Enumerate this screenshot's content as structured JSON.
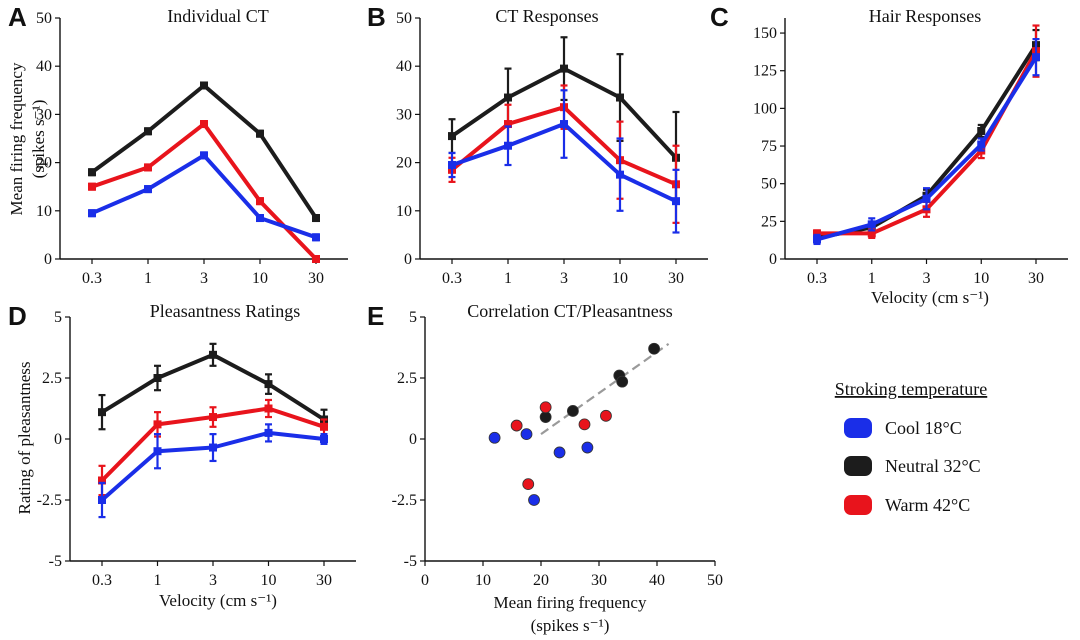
{
  "colors": {
    "Cool 18°C": "#1a2ee8",
    "Neutral 32°C": "#1c1c1c",
    "Warm 42°C": "#e8141c"
  },
  "legend": {
    "title": "Stroking temperature",
    "entries": [
      "Cool 18°C",
      "Neutral 32°C",
      "Warm 42°C"
    ]
  },
  "chart_data": [
    {
      "id": "A",
      "type": "line",
      "title": "Individual CT",
      "xlabel": "",
      "ylabel": [
        "Mean firing frequency",
        "(spikes s⁻¹)"
      ],
      "categories": [
        "0.3",
        "1",
        "3",
        "10",
        "30"
      ],
      "ylim": [
        0,
        50
      ],
      "yticks": [
        "0",
        "10",
        "20",
        "30",
        "40",
        "50"
      ],
      "series": [
        {
          "name": "Neutral 32°C",
          "values": [
            18,
            26.5,
            36,
            26,
            8.5
          ],
          "err": [
            0.6,
            0.6,
            0.6,
            0.6,
            0.6
          ]
        },
        {
          "name": "Warm 42°C",
          "values": [
            15,
            19,
            28,
            12,
            0
          ],
          "err": [
            0.6,
            0.6,
            0.6,
            0.6,
            0.6
          ]
        },
        {
          "name": "Cool 18°C",
          "values": [
            9.5,
            14.5,
            21.5,
            8.5,
            4.5
          ],
          "err": [
            0.6,
            0.6,
            0.6,
            0.6,
            0.6
          ]
        }
      ]
    },
    {
      "id": "B",
      "type": "line",
      "title": "CT Responses",
      "xlabel": "",
      "ylabel": [],
      "categories": [
        "0.3",
        "1",
        "3",
        "10",
        "30"
      ],
      "ylim": [
        0,
        50
      ],
      "yticks": [
        "0",
        "10",
        "20",
        "30",
        "40",
        "50"
      ],
      "series": [
        {
          "name": "Neutral 32°C",
          "values": [
            25.5,
            33.5,
            39.5,
            33.5,
            21
          ],
          "err": [
            3.5,
            6,
            6.5,
            9,
            9.5
          ]
        },
        {
          "name": "Warm 42°C",
          "values": [
            18.5,
            28,
            31.5,
            20.5,
            15.5
          ],
          "err": [
            2.5,
            4,
            4.5,
            8,
            8
          ]
        },
        {
          "name": "Cool 18°C",
          "values": [
            19.5,
            23.5,
            28,
            17.5,
            12
          ],
          "err": [
            2.5,
            4,
            7,
            7.5,
            6.5
          ]
        }
      ]
    },
    {
      "id": "C",
      "type": "line",
      "title": "Hair Responses",
      "xlabel": "Velocity (cm s⁻¹)",
      "ylabel": [],
      "categories": [
        "0.3",
        "1",
        "3",
        "10",
        "30"
      ],
      "ylim": [
        0,
        160
      ],
      "yticks": [
        "0",
        "25",
        "50",
        "75",
        "100",
        "125",
        "150"
      ],
      "series": [
        {
          "name": "Neutral 32°C",
          "values": [
            14,
            21,
            42,
            85,
            142
          ],
          "err": [
            2,
            2,
            4,
            4,
            10
          ]
        },
        {
          "name": "Warm 42°C",
          "values": [
            17,
            17,
            33,
            72,
            138
          ],
          "err": [
            2,
            3,
            5,
            5,
            17
          ]
        },
        {
          "name": "Cool 18°C",
          "values": [
            13,
            23,
            40,
            76,
            134
          ],
          "err": [
            3,
            4,
            7,
            4,
            12
          ]
        }
      ]
    },
    {
      "id": "D",
      "type": "line",
      "title": "Pleasantness Ratings",
      "xlabel": "Velocity (cm s⁻¹)",
      "ylabel": [
        "Rating of pleasantness"
      ],
      "categories": [
        "0.3",
        "1",
        "3",
        "10",
        "30"
      ],
      "ylim": [
        -5,
        5
      ],
      "yticks": [
        "-5",
        "-2.5",
        "0",
        "2.5",
        "5"
      ],
      "series": [
        {
          "name": "Neutral 32°C",
          "values": [
            1.1,
            2.5,
            3.45,
            2.25,
            0.8
          ],
          "err": [
            0.7,
            0.5,
            0.45,
            0.4,
            0.4
          ]
        },
        {
          "name": "Warm 42°C",
          "values": [
            -1.7,
            0.6,
            0.9,
            1.25,
            0.5
          ],
          "err": [
            0.6,
            0.5,
            0.4,
            0.35,
            0.3
          ]
        },
        {
          "name": "Cool 18°C",
          "values": [
            -2.5,
            -0.5,
            -0.35,
            0.25,
            0.0
          ],
          "err": [
            0.7,
            0.7,
            0.55,
            0.35,
            0.2
          ]
        }
      ]
    },
    {
      "id": "E",
      "type": "scatter",
      "title": "Correlation CT/Pleasantness",
      "xlabel": [
        "Mean firing frequency",
        "(spikes s⁻¹)"
      ],
      "ylabel": [],
      "xlim": [
        0,
        50
      ],
      "xticks": [
        "0",
        "10",
        "20",
        "30",
        "40",
        "50"
      ],
      "ylim": [
        -5,
        5
      ],
      "yticks": [
        "-5",
        "-2.5",
        "0",
        "2.5",
        "5"
      ],
      "trendline": {
        "x": [
          20,
          42
        ],
        "y": [
          0.2,
          3.9
        ]
      },
      "series": [
        {
          "name": "Cool 18°C",
          "points": [
            [
              12,
              0.05
            ],
            [
              17.5,
              0.2
            ],
            [
              18.8,
              -2.5
            ],
            [
              23.2,
              -0.55
            ],
            [
              28,
              -0.35
            ]
          ]
        },
        {
          "name": "Neutral 32°C",
          "points": [
            [
              20.8,
              0.9
            ],
            [
              25.5,
              1.15
            ],
            [
              33.5,
              2.6
            ],
            [
              34,
              2.35
            ],
            [
              39.5,
              3.7
            ]
          ]
        },
        {
          "name": "Warm 42°C",
          "points": [
            [
              15.8,
              0.55
            ],
            [
              17.8,
              -1.85
            ],
            [
              20.8,
              1.3
            ],
            [
              27.5,
              0.6
            ],
            [
              31.2,
              0.95
            ]
          ]
        }
      ]
    }
  ]
}
